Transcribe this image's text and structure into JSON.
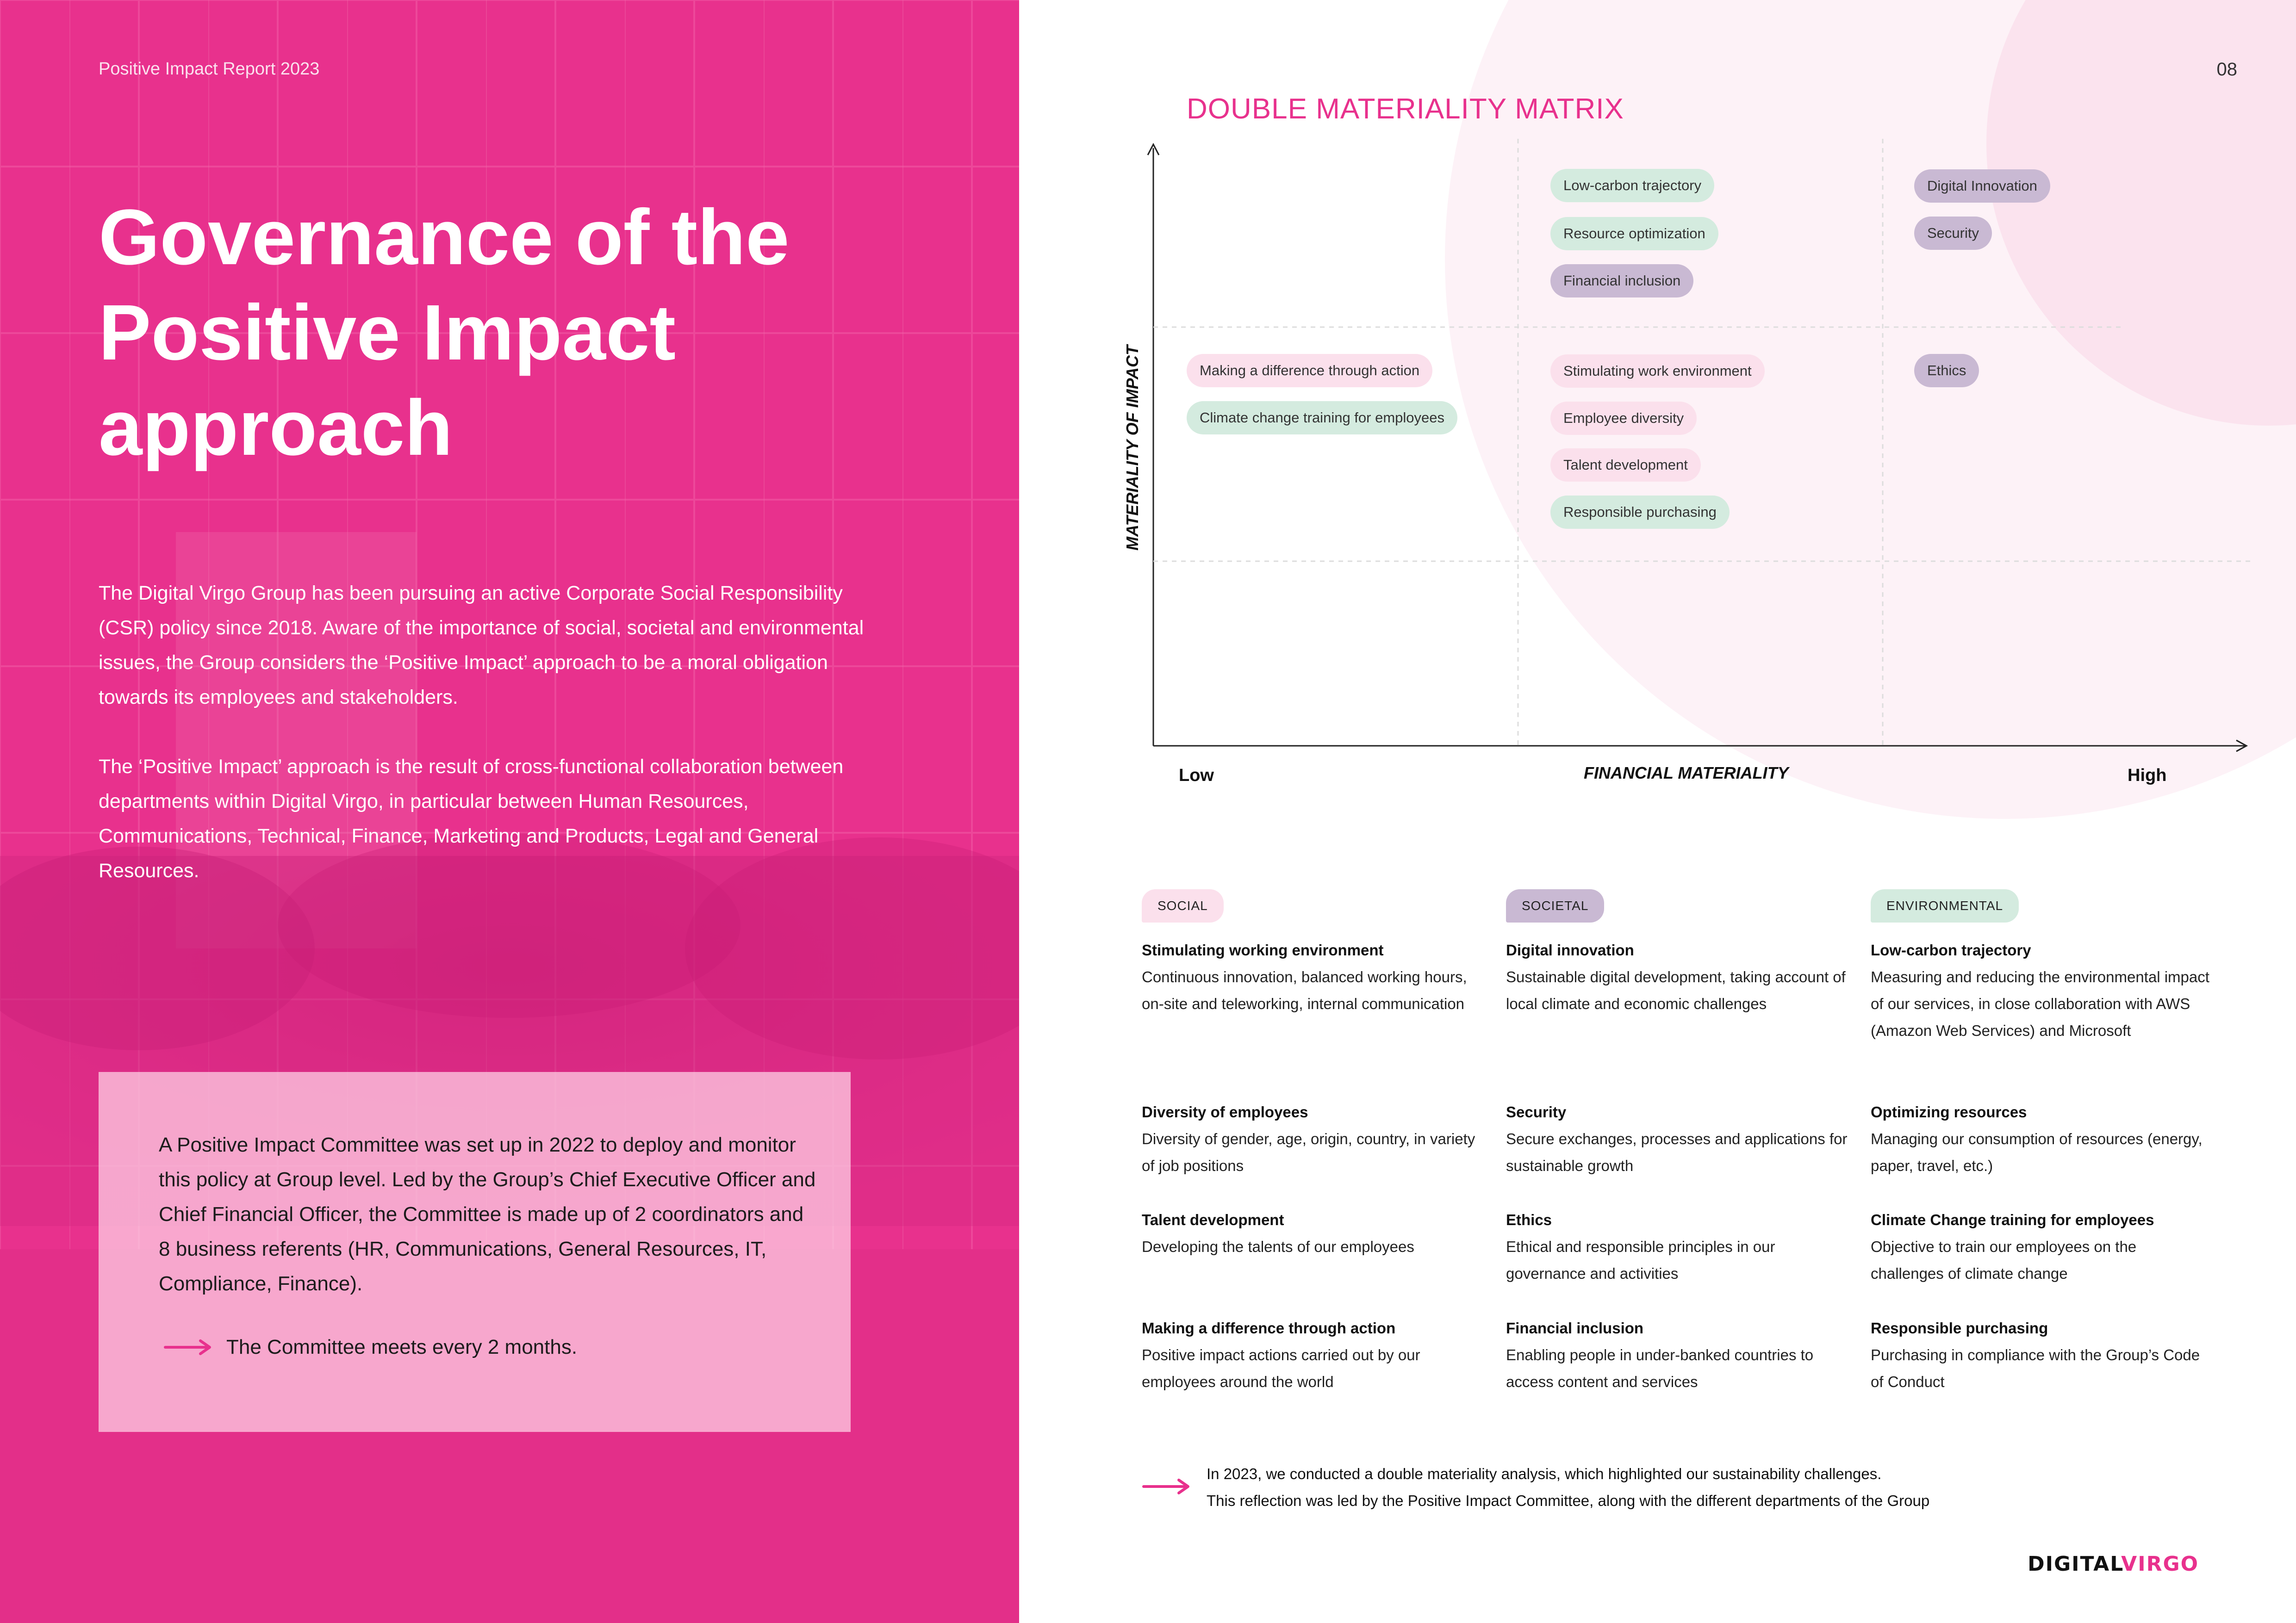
{
  "left": {
    "running_head": "Positive Impact Report 2023",
    "title_lines": [
      "Governance of the",
      "Positive Impact",
      "approach"
    ],
    "intro_paragraphs": [
      "The Digital Virgo Group has been pursuing an active Corporate Social Responsibility (CSR) policy since 2018. Aware of the importance of social, societal and environmental issues, the Group considers the ‘Positive Impact’ approach to be a moral obligation towards its employees and stakeholders.",
      " The ‘Positive Impact’ approach is the result of cross-functional collaboration between departments within Digital Virgo, in particular between Human Resources, Communications, Technical, Finance, Marketing and Products, Legal and General Resources."
    ],
    "committee": {
      "text": "A Positive Impact Committee was set up in 2022 to deploy and monitor this policy at Group level. Led by the Group’s Chief Executive Officer and Chief Financial Officer, the Committee is made up of 2 coordinators and 8 business referents (HR, Communications, General Resources, IT, Compliance, Finance).",
      "note": "The Committee meets every 2 months."
    }
  },
  "right": {
    "page_number": "08",
    "matrix": {
      "title": "DOUBLE MATERIALITY MATRIX",
      "y_label": "MATERIALITY OF IMPACT",
      "x_label": "FINANCIAL MATERIALITY",
      "x_low": "Low",
      "x_high": "High",
      "pills": [
        {
          "label": "Low-carbon trajectory",
          "category": "environmental"
        },
        {
          "label": "Resource optimization",
          "category": "environmental"
        },
        {
          "label": "Financial inclusion",
          "category": "societal"
        },
        {
          "label": "Digital Innovation",
          "category": "societal"
        },
        {
          "label": "Security",
          "category": "societal"
        },
        {
          "label": "Making a difference through action",
          "category": "social"
        },
        {
          "label": "Climate change training for employees",
          "category": "environmental"
        },
        {
          "label": "Stimulating work environment",
          "category": "social"
        },
        {
          "label": "Employee diversity",
          "category": "social"
        },
        {
          "label": "Talent development",
          "category": "social"
        },
        {
          "label": "Responsible purchasing",
          "category": "environmental"
        },
        {
          "label": "Ethics",
          "category": "societal"
        }
      ]
    },
    "categories": [
      {
        "badge": "SOCIAL",
        "entries": [
          {
            "heading": "Stimulating working environment",
            "text": "Continuous innovation, balanced working hours, on-site and teleworking, internal communication"
          },
          {
            "heading": "Diversity of employees",
            "text": "Diversity of gender, age, origin, country, in variety of job positions"
          },
          {
            "heading": "Talent development",
            "text": "Developing the talents of our employees"
          },
          {
            "heading": "Making a difference through action",
            "text": "Positive impact actions carried out by our employees around the world"
          }
        ]
      },
      {
        "badge": "SOCIETAL",
        "entries": [
          {
            "heading": "Digital innovation",
            "text": "Sustainable digital development, taking account of local climate and economic challenges"
          },
          {
            "heading": "Security",
            "text": "Secure exchanges, processes and applications for sustainable growth"
          },
          {
            "heading": "Ethics",
            "text": "Ethical and responsible principles in our governance and activities"
          },
          {
            "heading": "Financial inclusion",
            "text": "Enabling people in under-banked countries to access content and services"
          }
        ]
      },
      {
        "badge": "ENVIRONMENTAL",
        "entries": [
          {
            "heading": "Low-carbon trajectory",
            "text": "Measuring and reducing the environmental impact of our services, in close collaboration with AWS (Amazon Web Services) and Microsoft"
          },
          {
            "heading": " Optimizing resources",
            "text": "Managing our consumption of resources (energy, paper, travel, etc.)"
          },
          {
            "heading": "Climate Change training for employees",
            "text": "Objective to train our employees on the challenges of climate change"
          },
          {
            "heading": "Responsible purchasing",
            "text": "Purchasing in compliance with the Group’s Code of Conduct"
          }
        ]
      }
    ],
    "footnote_lines": [
      "In 2023, we conducted a double materiality analysis, which highlighted our sustainability challenges.",
      "This reflection was led by the Positive Impact Committee, along with the different departments of the Group"
    ],
    "logo": {
      "part1": "DIGITAL",
      "part2": "VIRGO"
    }
  },
  "colors": {
    "brand_pink": "#e8318d",
    "social": "#fbe0ec",
    "societal": "#c9b9d3",
    "environmental": "#d4ebdf"
  }
}
